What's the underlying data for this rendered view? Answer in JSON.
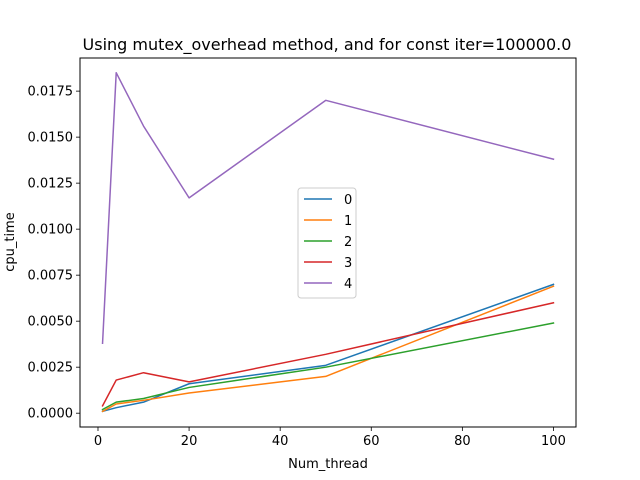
{
  "chart_data": {
    "type": "line",
    "title": "Using mutex_overhead method, and for const iter=100000.0",
    "xlabel": "Num_thread",
    "ylabel": "cpu_time",
    "x": [
      1,
      4,
      10,
      20,
      50,
      100
    ],
    "xlim": [
      -3.95,
      104.95
    ],
    "ylim": [
      -0.00075,
      0.0193
    ],
    "xticks": [
      0,
      20,
      40,
      60,
      80,
      100
    ],
    "xtick_labels": [
      "0",
      "20",
      "40",
      "60",
      "80",
      "100"
    ],
    "yticks": [
      0.0,
      0.0025,
      0.005,
      0.0075,
      0.01,
      0.0125,
      0.015,
      0.0175
    ],
    "ytick_labels": [
      "0.0000",
      "0.0025",
      "0.0050",
      "0.0075",
      "0.0100",
      "0.0125",
      "0.0150",
      "0.0175"
    ],
    "grid": false,
    "legend_position": "center",
    "series": [
      {
        "name": "0",
        "color": "#1f77b4",
        "values": [
          0.0001,
          0.0003,
          0.0006,
          0.0016,
          0.0026,
          0.007
        ]
      },
      {
        "name": "1",
        "color": "#ff7f0e",
        "values": [
          0.0001,
          0.0005,
          0.0007,
          0.0011,
          0.002,
          0.0069
        ]
      },
      {
        "name": "2",
        "color": "#2ca02c",
        "values": [
          0.0002,
          0.0006,
          0.0008,
          0.0014,
          0.0025,
          0.0049
        ]
      },
      {
        "name": "3",
        "color": "#d62728",
        "values": [
          0.0004,
          0.0018,
          0.0022,
          0.0017,
          0.0032,
          0.006
        ]
      },
      {
        "name": "4",
        "color": "#9467bd",
        "values": [
          0.0038,
          0.0185,
          0.0156,
          0.0117,
          0.017,
          0.0138
        ]
      }
    ]
  }
}
